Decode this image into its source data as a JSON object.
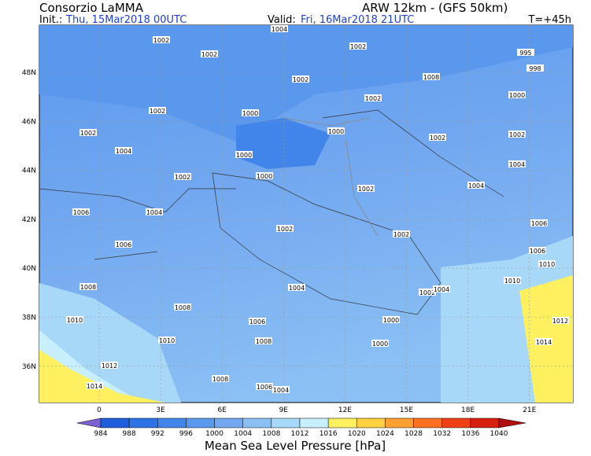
{
  "header": {
    "org": "Consorzio LaMMA",
    "model": "ARW 12km - (GFS 50km)",
    "init_label": "Init.:",
    "init": "Thu, 15Mar2018 00UTC",
    "valid_label": "Valid:",
    "valid": "Fri, 16Mar2018 21UTC",
    "lead": "T=+45h"
  },
  "map": {
    "lat_labels": [
      "48N",
      "46N",
      "44N",
      "42N",
      "40N",
      "38N",
      "36N"
    ],
    "lon_labels": [
      "0",
      "3E",
      "6E",
      "9E",
      "12E",
      "15E",
      "18E",
      "21E"
    ],
    "isobar_labels": [
      "1004",
      "1002",
      "1002",
      "1002",
      "995",
      "998",
      "1008",
      "1002",
      "1002",
      "1000",
      "1002",
      "1000",
      "1002",
      "1000",
      "1002",
      "1002",
      "1004",
      "1000",
      "1004",
      "1002",
      "1000",
      "1004",
      "1002",
      "1006",
      "1004",
      "1006",
      "1002",
      "1002",
      "1006",
      "1006",
      "1010",
      "1010",
      "1008",
      "1004",
      "1002",
      "1004",
      "1010",
      "1008",
      "1006",
      "1000",
      "1012",
      "1010",
      "1008",
      "1000",
      "1014",
      "1012",
      "1008",
      "1006",
      "1004",
      "1014"
    ]
  },
  "colorbar": {
    "labels": [
      "984",
      "988",
      "992",
      "996",
      "1000",
      "1004",
      "1008",
      "1012",
      "1016",
      "1020",
      "1024",
      "1028",
      "1032",
      "1036",
      "1040"
    ],
    "colors": [
      "#7a62d0",
      "#1f5fdc",
      "#2f72e6",
      "#4285ea",
      "#5a98ee",
      "#72a8f0",
      "#8ac0f4",
      "#a8d8f8",
      "#c8f0fc",
      "#fff060",
      "#ffd040",
      "#ffa030",
      "#ff7020",
      "#f04018",
      "#d82010",
      "#b01010"
    ],
    "title": "Mean Sea Level Pressure [hPa]"
  }
}
